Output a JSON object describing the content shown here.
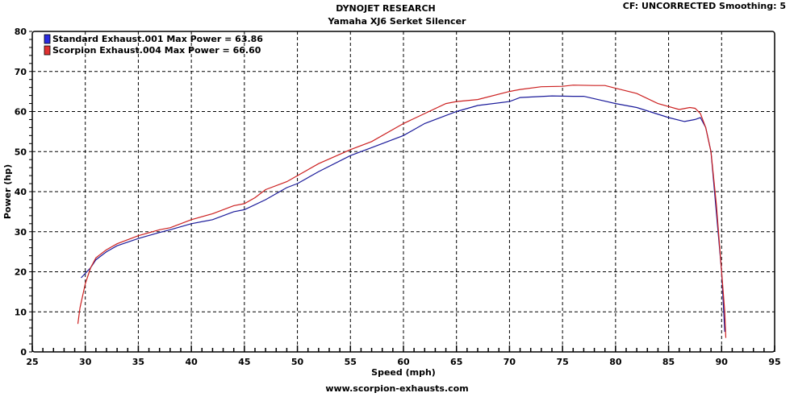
{
  "header": {
    "title": "DYNOJET RESEARCH",
    "subtitle": "Yamaha XJ6 Serket Silencer",
    "info": "CF: UNCORRECTED  Smoothing: 5"
  },
  "footer": {
    "url": "www.scorpion-exhausts.com"
  },
  "chart_data": {
    "type": "line",
    "title": "DYNOJET RESEARCH",
    "subtitle": "Yamaha XJ6 Serket Silencer",
    "xlabel": "Speed (mph)",
    "ylabel": "Power (hp)",
    "xlim": [
      25,
      95
    ],
    "ylim": [
      0,
      80
    ],
    "xticks": [
      25,
      30,
      35,
      40,
      45,
      50,
      55,
      60,
      65,
      70,
      75,
      80,
      85,
      90,
      95
    ],
    "yticks": [
      0,
      10,
      20,
      30,
      40,
      50,
      60,
      70,
      80
    ],
    "grid": true,
    "legend_position": "top-left",
    "series": [
      {
        "name": "Standard Exhaust.001 Max Power = 63.86",
        "color": "#1a1a9a",
        "swatch": "#2a2ae0",
        "x": [
          29.6,
          30.5,
          31,
          32,
          33,
          35,
          37,
          38,
          40,
          42,
          44,
          45,
          47,
          49,
          50,
          52,
          55,
          57,
          60,
          62,
          65,
          67,
          70,
          71,
          74,
          76,
          77,
          80,
          82,
          85,
          86.5,
          87.5,
          88,
          88.5,
          89,
          89.5,
          90,
          90.2,
          90.3
        ],
        "y": [
          18.5,
          21,
          23,
          25,
          26.5,
          28.3,
          29.8,
          30.5,
          32,
          33,
          35,
          35.5,
          38,
          41,
          42,
          45,
          49,
          51,
          54,
          57,
          60,
          61.5,
          62.5,
          63.5,
          63.9,
          63.8,
          63.8,
          62,
          61,
          58.5,
          57.5,
          58,
          58.5,
          56,
          50,
          35,
          20,
          10,
          5
        ]
      },
      {
        "name": "Scorpion Exhaust.004 Max Power = 66.60",
        "color": "#cc2020",
        "swatch": "#e03030",
        "x": [
          29.3,
          29.5,
          30,
          30.5,
          31,
          32,
          33,
          35,
          37,
          38,
          40,
          42,
          44,
          45,
          46,
          47,
          49,
          50,
          52,
          55,
          57,
          60,
          62,
          64,
          65,
          67,
          70,
          71,
          73,
          75,
          76,
          78,
          79,
          80,
          82,
          84,
          86,
          87,
          87.5,
          88,
          88.5,
          89,
          89.5,
          90,
          90.3,
          90.4
        ],
        "y": [
          7,
          11,
          17,
          21,
          23.5,
          25.5,
          27,
          29,
          30.5,
          31,
          33,
          34.5,
          36.5,
          37,
          38.5,
          40.5,
          42.5,
          44,
          47,
          50.5,
          52.5,
          57,
          59.5,
          62,
          62.5,
          63,
          65,
          65.5,
          66.2,
          66.3,
          66.6,
          66.5,
          66.5,
          65.8,
          64.5,
          62,
          60.5,
          61,
          60.8,
          59.5,
          56,
          50,
          37,
          20,
          10,
          3.5
        ]
      }
    ]
  }
}
